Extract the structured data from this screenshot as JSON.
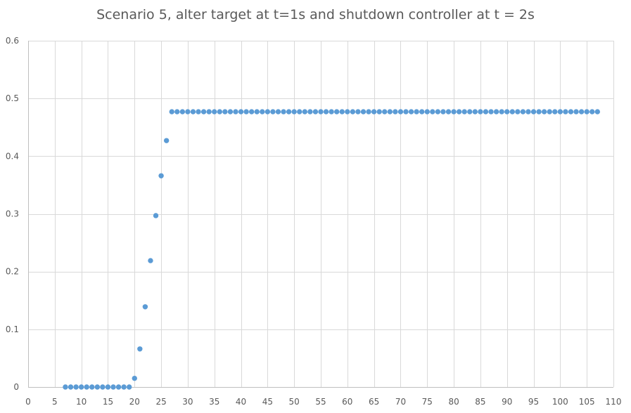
{
  "chart_data": {
    "type": "scatter",
    "title": "Scenario 5, alter target at t=1s and shutdown controller at t = 2s",
    "xlabel": "",
    "ylabel": "",
    "xlim": [
      0,
      110
    ],
    "ylim": [
      0,
      0.6
    ],
    "x_ticks": [
      0,
      5,
      10,
      15,
      20,
      25,
      30,
      35,
      40,
      45,
      50,
      55,
      60,
      65,
      70,
      75,
      80,
      85,
      90,
      95,
      100,
      105,
      110
    ],
    "y_ticks": [
      0,
      0.1,
      0.2,
      0.3,
      0.4,
      0.5,
      0.6
    ],
    "grid": true,
    "marker_color": "#5b9bd5",
    "series": [
      {
        "x": [
          7,
          8,
          9,
          10,
          11,
          12,
          13,
          14,
          15,
          16,
          17,
          18,
          19,
          20,
          21,
          22,
          23,
          24,
          25,
          26,
          27,
          28,
          29,
          30,
          31,
          32,
          33,
          34,
          35,
          36,
          37,
          38,
          39,
          40,
          41,
          42,
          43,
          44,
          45,
          46,
          47,
          48,
          49,
          50,
          51,
          52,
          53,
          54,
          55,
          56,
          57,
          58,
          59,
          60,
          61,
          62,
          63,
          64,
          65,
          66,
          67,
          68,
          69,
          70,
          71,
          72,
          73,
          74,
          75,
          76,
          77,
          78,
          79,
          80,
          81,
          82,
          83,
          84,
          85,
          86,
          87,
          88,
          89,
          90,
          91,
          92,
          93,
          94,
          95,
          96,
          97,
          98,
          99,
          100,
          101,
          102,
          103,
          104,
          105,
          106,
          107
        ],
        "y": [
          0,
          0,
          0,
          0,
          0,
          0,
          0,
          0,
          0,
          0,
          0,
          0,
          0,
          0.015,
          0.066,
          0.139,
          0.219,
          0.297,
          0.366,
          0.427,
          0.477,
          0.477,
          0.477,
          0.477,
          0.477,
          0.477,
          0.477,
          0.477,
          0.477,
          0.477,
          0.477,
          0.477,
          0.477,
          0.477,
          0.477,
          0.477,
          0.477,
          0.477,
          0.477,
          0.477,
          0.477,
          0.477,
          0.477,
          0.477,
          0.477,
          0.477,
          0.477,
          0.477,
          0.477,
          0.477,
          0.477,
          0.477,
          0.477,
          0.477,
          0.477,
          0.477,
          0.477,
          0.477,
          0.477,
          0.477,
          0.477,
          0.477,
          0.477,
          0.477,
          0.477,
          0.477,
          0.477,
          0.477,
          0.477,
          0.477,
          0.477,
          0.477,
          0.477,
          0.477,
          0.477,
          0.477,
          0.477,
          0.477,
          0.477,
          0.477,
          0.477,
          0.477,
          0.477,
          0.477,
          0.477,
          0.477,
          0.477,
          0.477,
          0.477,
          0.477,
          0.477,
          0.477,
          0.477,
          0.477,
          0.477,
          0.477,
          0.477,
          0.477,
          0.477,
          0.477,
          0.477
        ]
      }
    ]
  }
}
